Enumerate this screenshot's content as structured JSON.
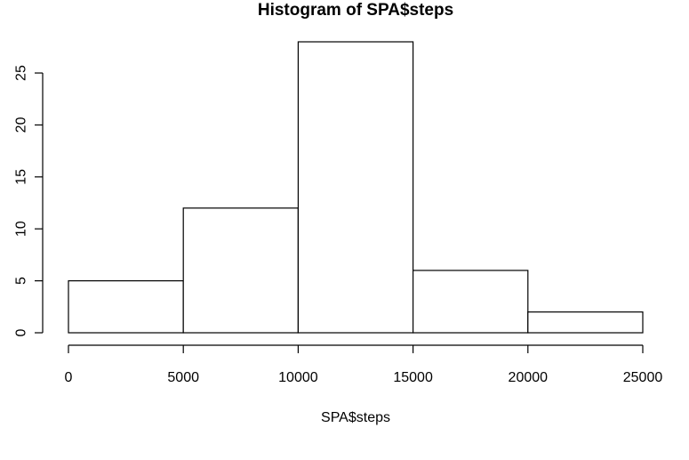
{
  "chart_data": {
    "type": "bar",
    "title": "Histogram of SPA$steps",
    "xlabel": "SPA$steps",
    "ylabel": "",
    "bins": [
      {
        "start": 0,
        "end": 5000,
        "count": 5
      },
      {
        "start": 5000,
        "end": 10000,
        "count": 12
      },
      {
        "start": 10000,
        "end": 15000,
        "count": 28
      },
      {
        "start": 15000,
        "end": 20000,
        "count": 6
      },
      {
        "start": 20000,
        "end": 25000,
        "count": 2
      }
    ],
    "xlim": [
      0,
      25000
    ],
    "ylim": [
      0,
      28
    ],
    "x_ticks": [
      0,
      5000,
      10000,
      15000,
      20000,
      25000
    ],
    "y_ticks": [
      0,
      5,
      10,
      15,
      20,
      25
    ],
    "grid": false,
    "bar_color": "#ffffff",
    "edge_color": "#000000"
  }
}
